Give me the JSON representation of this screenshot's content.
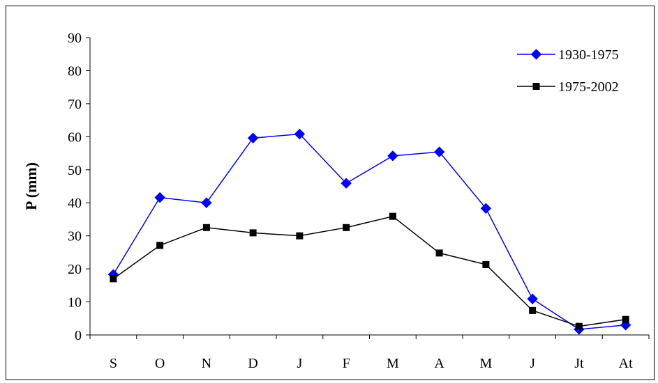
{
  "chart_data": {
    "type": "line",
    "title": "",
    "xlabel": "",
    "ylabel": "P (mm)",
    "categories": [
      "S",
      "O",
      "N",
      "D",
      "J",
      "F",
      "M",
      "A",
      "M",
      "J",
      "Jt",
      "At"
    ],
    "ylim": [
      0,
      90
    ],
    "yticks": [
      0,
      10,
      20,
      30,
      40,
      50,
      60,
      70,
      80,
      90
    ],
    "grid": false,
    "legend_position": "top-right",
    "series": [
      {
        "name": "1930-1975",
        "color": "#0000ff",
        "marker": "diamond",
        "marker_color": "#0000ff",
        "values": [
          18.3,
          41.6,
          40.0,
          59.6,
          60.8,
          45.9,
          54.2,
          55.4,
          38.3,
          10.9,
          1.7,
          3.0
        ]
      },
      {
        "name": "1975-2002",
        "color": "#000000",
        "marker": "square",
        "marker_color": "#000000",
        "values": [
          17.0,
          27.1,
          32.5,
          30.9,
          30.0,
          32.5,
          35.9,
          24.8,
          21.3,
          7.4,
          2.6,
          4.7
        ]
      }
    ]
  }
}
